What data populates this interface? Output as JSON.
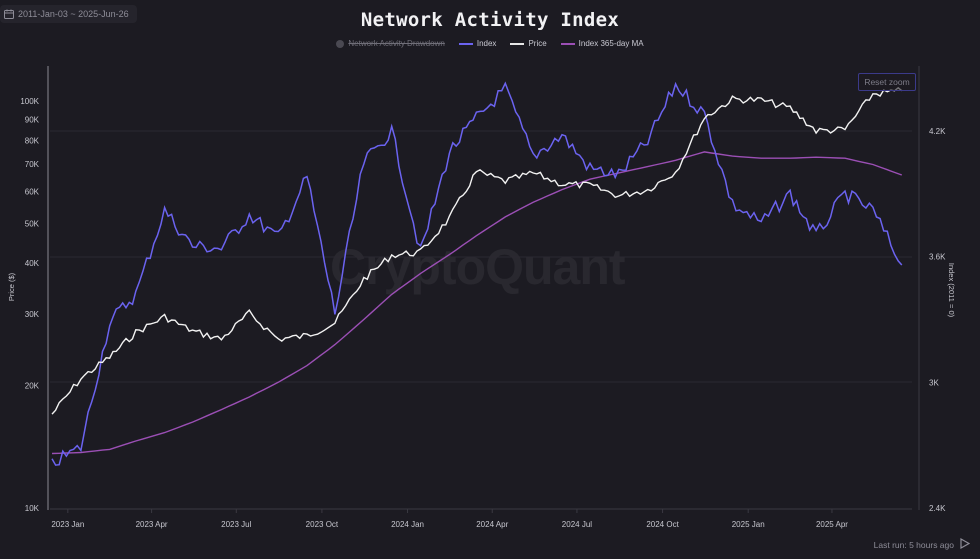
{
  "header": {
    "date_range": "2011-Jan-03 ~ 2025-Jun-26",
    "title": "Network Activity Index"
  },
  "legend": [
    {
      "label": "Network Activity Drawdown",
      "color": "#4a4952",
      "enabled": false
    },
    {
      "label": "Index",
      "color": "#6b63f0",
      "enabled": true
    },
    {
      "label": "Price",
      "color": "#ffffff",
      "enabled": true
    },
    {
      "label": "Index 365-day MA",
      "color": "#9b4fb5",
      "enabled": true
    }
  ],
  "controls": {
    "reset_zoom": "Reset zoom",
    "last_run": "Last run: 5 hours ago"
  },
  "watermark": "CryptoQuant",
  "axes": {
    "left_title": "Price ($)",
    "right_title": "Index (2011 = 0)",
    "left_ticks": [
      "100K",
      "90K",
      "80K",
      "70K",
      "60K",
      "50K",
      "40K",
      "30K",
      "20K",
      "10K"
    ],
    "right_ticks": [
      "4.2K",
      "3.6K",
      "3K",
      "2.4K"
    ],
    "x_ticks": [
      "2023 Jan",
      "2023 Apr",
      "2023 Jul",
      "2023 Oct",
      "2024 Jan",
      "2024 Apr",
      "2024 Jul",
      "2024 Oct",
      "2025 Jan",
      "2025 Apr"
    ]
  },
  "colors": {
    "background": "#1c1b22",
    "index": "#6b63f0",
    "price": "#f2f2f2",
    "ma": "#9b4fb5",
    "grid": "#2a2931"
  },
  "chart_data": {
    "type": "line",
    "title": "Network Activity Index",
    "xlabel": "",
    "ylabel_left": "Price ($)",
    "ylabel_right": "Index (2011 = 0)",
    "ylim_left": [
      10000,
      120000
    ],
    "yscale_left": "log",
    "ylim_right": [
      2400,
      4500
    ],
    "x_range": [
      "2022-12-15",
      "2025-06-26"
    ],
    "grid": true,
    "legend_position": "top",
    "x": [
      "2022-12-15",
      "2023-01-15",
      "2023-02-15",
      "2023-03-15",
      "2023-04-15",
      "2023-05-15",
      "2023-06-15",
      "2023-07-15",
      "2023-08-15",
      "2023-09-15",
      "2023-10-15",
      "2023-11-15",
      "2023-12-15",
      "2024-01-15",
      "2024-02-15",
      "2024-03-15",
      "2024-04-15",
      "2024-05-15",
      "2024-06-15",
      "2024-07-15",
      "2024-08-15",
      "2024-09-15",
      "2024-10-15",
      "2024-11-15",
      "2024-12-15",
      "2025-01-15",
      "2025-02-15",
      "2025-03-15",
      "2025-04-15",
      "2025-05-15",
      "2025-06-15"
    ],
    "series": [
      {
        "name": "Price",
        "axis": "left",
        "values": [
          17000,
          20800,
          23500,
          27000,
          29500,
          27200,
          26000,
          30100,
          26000,
          26500,
          28500,
          36500,
          41800,
          42500,
          51500,
          67000,
          63500,
          66500,
          62500,
          62000,
          58500,
          60500,
          67000,
          91000,
          101000,
          100500,
          96000,
          84500,
          85000,
          104000,
          106000
        ]
      },
      {
        "name": "Index",
        "axis": "right",
        "values": [
          2610,
          2690,
          3290,
          3420,
          3820,
          3650,
          3640,
          3800,
          3690,
          3980,
          3330,
          4050,
          4200,
          3620,
          4100,
          4260,
          4400,
          4080,
          4180,
          4020,
          3990,
          4150,
          4420,
          4280,
          3850,
          3760,
          3900,
          3700,
          3900,
          3820,
          3560
        ]
      },
      {
        "name": "Index 365-day MA",
        "axis": "right",
        "values": [
          2660,
          2665,
          2680,
          2720,
          2760,
          2810,
          2870,
          2930,
          3000,
          3080,
          3180,
          3300,
          3420,
          3520,
          3610,
          3700,
          3790,
          3860,
          3920,
          3970,
          4000,
          4030,
          4060,
          4100,
          4080,
          4070,
          4070,
          4075,
          4070,
          4040,
          3990
        ]
      }
    ]
  }
}
